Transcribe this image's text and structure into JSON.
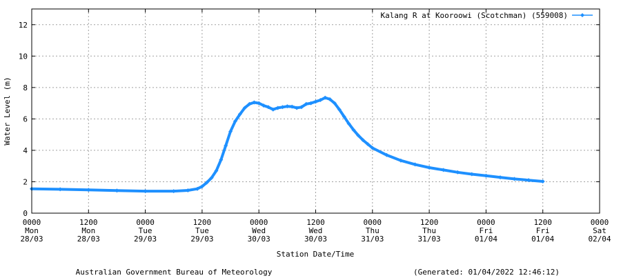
{
  "chart_data": {
    "type": "line",
    "ylabel": "Water Level (m)",
    "xlabel": "Station Date/Time",
    "ylim": [
      0,
      13
    ],
    "yticks": [
      0,
      2,
      4,
      6,
      8,
      10,
      12
    ],
    "xlim_hours": [
      0,
      120
    ],
    "grid": true,
    "legend_position": "top-right",
    "series_color": "#1e90ff",
    "series": [
      {
        "name": "Kalang R at Kooroowi (Scotchman) (559008)",
        "x_hours": [
          0,
          6,
          12,
          18,
          24,
          30,
          33,
          35,
          36,
          37,
          38,
          39,
          40,
          41,
          42,
          43,
          44,
          45,
          46,
          47,
          48,
          49,
          50,
          51,
          52,
          53,
          54,
          55,
          56,
          57,
          58,
          59,
          60,
          61,
          62,
          63,
          64,
          65,
          66,
          67,
          68,
          69,
          70,
          71,
          72,
          75,
          78,
          81,
          84,
          87,
          90,
          93,
          96,
          99,
          102,
          105,
          108
        ],
        "values": [
          1.55,
          1.52,
          1.48,
          1.44,
          1.4,
          1.4,
          1.45,
          1.55,
          1.7,
          1.95,
          2.25,
          2.7,
          3.4,
          4.3,
          5.2,
          5.85,
          6.3,
          6.7,
          6.95,
          7.05,
          7.0,
          6.85,
          6.75,
          6.6,
          6.7,
          6.75,
          6.8,
          6.78,
          6.7,
          6.75,
          6.95,
          7.0,
          7.1,
          7.2,
          7.35,
          7.25,
          7.0,
          6.6,
          6.15,
          5.7,
          5.3,
          4.95,
          4.65,
          4.4,
          4.15,
          3.7,
          3.35,
          3.1,
          2.9,
          2.75,
          2.6,
          2.48,
          2.38,
          2.28,
          2.18,
          2.1,
          2.02
        ]
      }
    ],
    "x_ticks": [
      {
        "time": "0000",
        "day": "Mon",
        "date": "28/03"
      },
      {
        "time": "1200",
        "day": "Mon",
        "date": "28/03"
      },
      {
        "time": "0000",
        "day": "Tue",
        "date": "29/03"
      },
      {
        "time": "1200",
        "day": "Tue",
        "date": "29/03"
      },
      {
        "time": "0000",
        "day": "Wed",
        "date": "30/03"
      },
      {
        "time": "1200",
        "day": "Wed",
        "date": "30/03"
      },
      {
        "time": "0000",
        "day": "Thu",
        "date": "31/03"
      },
      {
        "time": "1200",
        "day": "Thu",
        "date": "31/03"
      },
      {
        "time": "0000",
        "day": "Fri",
        "date": "01/04"
      },
      {
        "time": "1200",
        "day": "Fri",
        "date": "01/04"
      },
      {
        "time": "0000",
        "day": "Sat",
        "date": "02/04"
      }
    ]
  },
  "footer": {
    "source": "Australian Government Bureau of Meteorology",
    "generated": "(Generated: 01/04/2022 12:46:12)"
  }
}
